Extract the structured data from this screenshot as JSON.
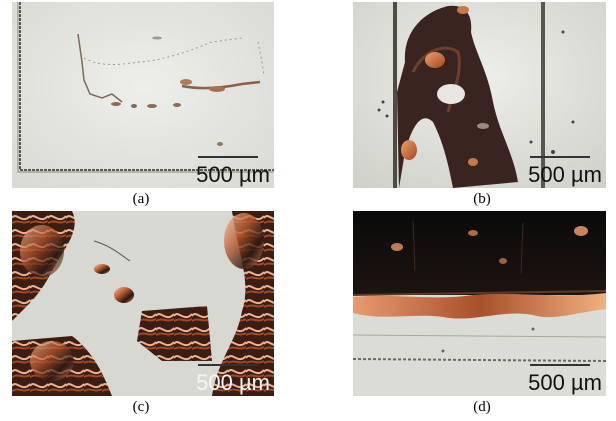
{
  "panels": [
    {
      "caption": "(a)",
      "scale_label": "500 µm"
    },
    {
      "caption": "(b)",
      "scale_label": "500 µm"
    },
    {
      "caption": "(c)",
      "scale_label": "500 µm"
    },
    {
      "caption": "(d)",
      "scale_label": "500 µm"
    }
  ]
}
